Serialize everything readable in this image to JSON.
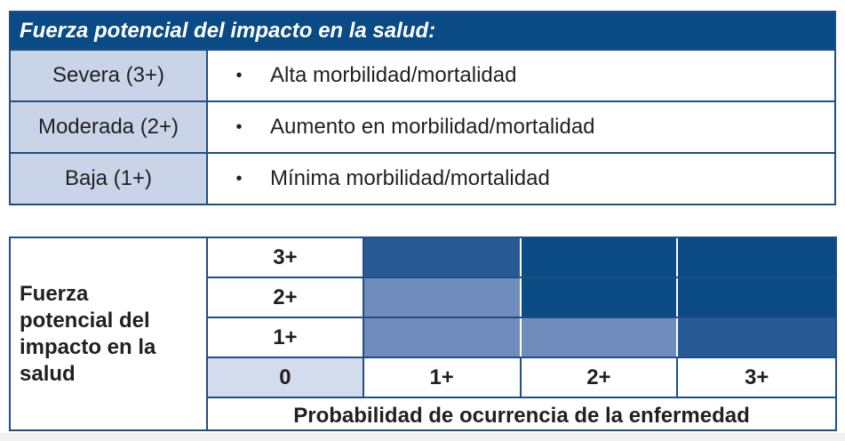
{
  "impact_table": {
    "header": "Fuerza potencial del impacto en la salud:",
    "rows": [
      {
        "label": "Severa (3+)",
        "bullet": "•",
        "description": "Alta morbilidad/mortalidad"
      },
      {
        "label": "Moderada (2+)",
        "bullet": "•",
        "description": "Aumento en morbilidad/mortalidad"
      },
      {
        "label": "Baja (1+)",
        "bullet": "•",
        "description": "Mínima morbilidad/mortalidad"
      }
    ]
  },
  "matrix": {
    "side_label_lines": [
      "Fuerza",
      "potencial del",
      "impacto en la",
      "salud"
    ],
    "impact_levels": [
      "3+",
      "2+",
      "1+"
    ],
    "zero_label": "0",
    "probability_levels": [
      "1+",
      "2+",
      "3+"
    ],
    "footer_label": "Probabilidad de ocurrencia de la enfermedad",
    "colors": {
      "dark": "#0a4a85",
      "medium": "#285b96",
      "light": "#6f8cbc",
      "zero_cell": "#d3dcec"
    },
    "cell_shades": [
      [
        "medium",
        "dark",
        "dark"
      ],
      [
        "light",
        "dark",
        "dark"
      ],
      [
        "light",
        "light",
        "medium"
      ]
    ]
  }
}
